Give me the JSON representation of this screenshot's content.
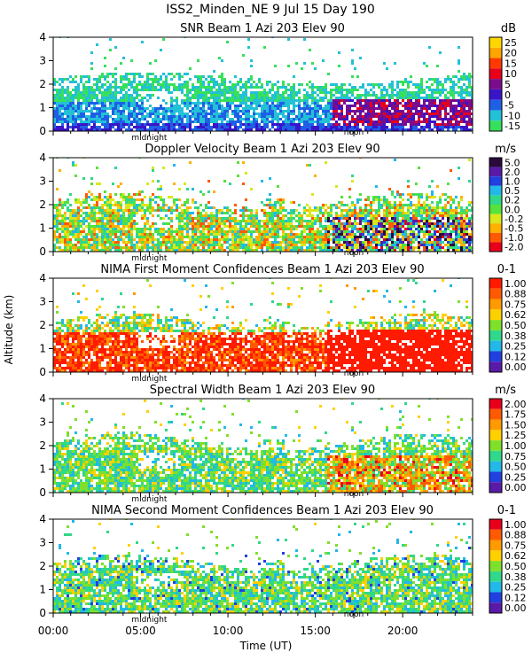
{
  "page": {
    "header": "ISS2_Minden_NE    9 Jul 15 Day 190",
    "ylabel": "Altitude (km)",
    "xlabel": "Time (UT)",
    "time_ticks": [
      "00:00",
      "05:00",
      "10:00",
      "15:00",
      "20:00"
    ],
    "marker_midnight": "midnight",
    "marker_noon": "noon"
  },
  "chart_data": [
    {
      "type": "heatmap",
      "title": "SNR Beam 1 Azi 203 Elev 90",
      "unit": "dB",
      "xlim": [
        0,
        24
      ],
      "ylim": [
        0,
        4
      ],
      "yticks": [
        0,
        1,
        2,
        3,
        4
      ],
      "colorbar": {
        "labels": [
          "25",
          "20",
          "15",
          "10",
          "5",
          "0",
          "-5",
          "-10",
          "-15"
        ],
        "colors": [
          "#ffd700",
          "#ffa500",
          "#ff3a00",
          "#e8001a",
          "#7a0d8c",
          "#3a14c8",
          "#1f5fe6",
          "#22c1d6",
          "#37e05c"
        ]
      }
    },
    {
      "type": "heatmap",
      "title": "Doppler Velocity Beam 1 Azi 203 Elev 90",
      "unit": "m/s",
      "xlim": [
        0,
        24
      ],
      "ylim": [
        0,
        4
      ],
      "yticks": [
        0,
        1,
        2,
        3,
        4
      ],
      "colorbar": {
        "labels": [
          "5.0",
          "2.0",
          "1.0",
          "0.5",
          "0.2",
          "0.0",
          "-0.2",
          "-0.5",
          "-1.0",
          "-2.0"
        ],
        "colors": [
          "#2a0a3a",
          "#5a1aa8",
          "#2040e0",
          "#22b8e8",
          "#2fd88a",
          "#55e23a",
          "#d8e81a",
          "#ffb000",
          "#ff5a00",
          "#e8001a"
        ]
      }
    },
    {
      "type": "heatmap",
      "title": "NIMA First Moment Confidences Beam 1 Azi 203 Elev 90",
      "unit": "0-1",
      "xlim": [
        0,
        24
      ],
      "ylim": [
        0,
        4
      ],
      "yticks": [
        0,
        1,
        2,
        3,
        4
      ],
      "colorbar": {
        "labels": [
          "1.00",
          "0.88",
          "0.75",
          "0.62",
          "0.50",
          "0.38",
          "0.25",
          "0.12",
          "0.00"
        ],
        "colors": [
          "#ff1a00",
          "#ff5a00",
          "#ff9a00",
          "#ffd000",
          "#7ee02a",
          "#2fd88a",
          "#22b8e8",
          "#2040e0",
          "#5a1aa8"
        ]
      }
    },
    {
      "type": "heatmap",
      "title": "Spectral Width Beam 1 Azi 203 Elev 90",
      "unit": "m/s",
      "xlim": [
        0,
        24
      ],
      "ylim": [
        0,
        4
      ],
      "yticks": [
        0,
        1,
        2,
        3,
        4
      ],
      "colorbar": {
        "labels": [
          "2.00",
          "1.75",
          "1.50",
          "1.25",
          "1.00",
          "0.75",
          "0.50",
          "0.25",
          "0.00"
        ],
        "colors": [
          "#e8001a",
          "#ff5a00",
          "#ff9a00",
          "#ffd000",
          "#7ee02a",
          "#2fd88a",
          "#22b8e8",
          "#2040e0",
          "#5a1aa8"
        ]
      }
    },
    {
      "type": "heatmap",
      "title": "NIMA Second Moment Confidences Beam 1 Azi 203 Elev 90",
      "unit": "0-1",
      "xlim": [
        0,
        24
      ],
      "ylim": [
        0,
        4
      ],
      "yticks": [
        0,
        1,
        2,
        3,
        4
      ],
      "colorbar": {
        "labels": [
          "1.00",
          "0.88",
          "0.75",
          "0.62",
          "0.50",
          "0.38",
          "0.25",
          "0.12",
          "0.00"
        ],
        "colors": [
          "#e8001a",
          "#ff5a00",
          "#ff9a00",
          "#ffd000",
          "#7ee02a",
          "#2fd88a",
          "#22b8e8",
          "#2040e0",
          "#5a1aa8"
        ]
      }
    }
  ]
}
